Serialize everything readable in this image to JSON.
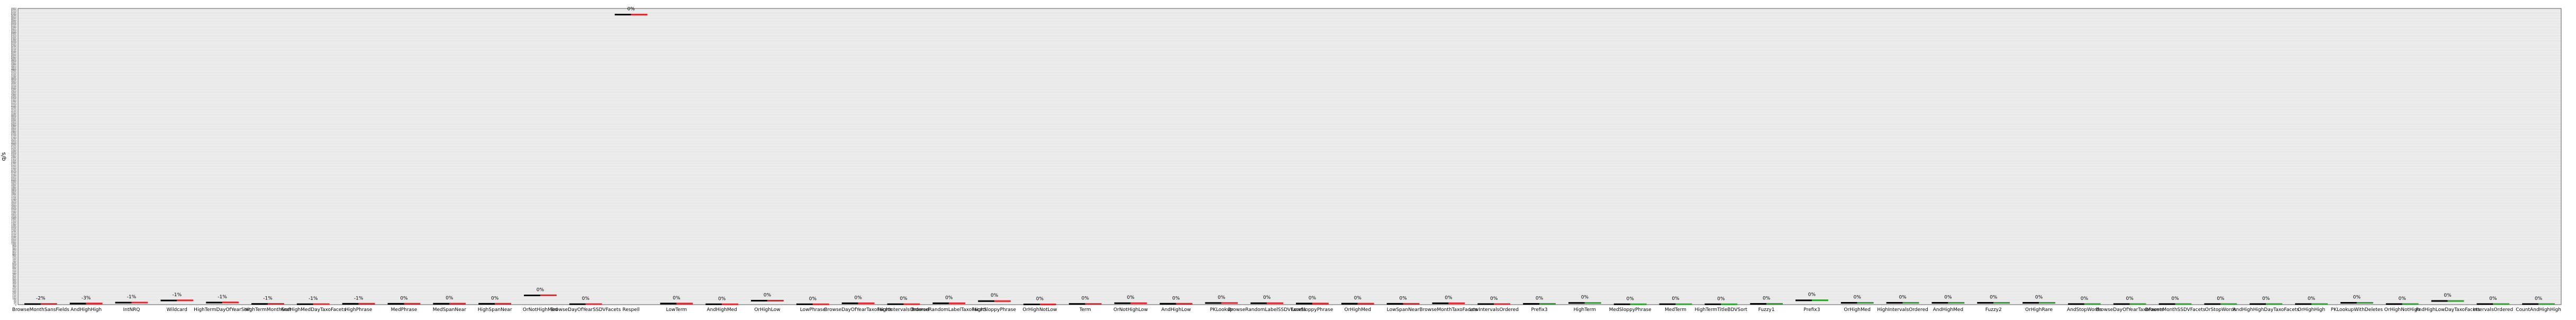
{
  "chart_data": {
    "type": "scatter",
    "ylabel": "q/s",
    "ylim": [
      0,
      4800
    ],
    "grid": true,
    "tick_step": 25,
    "series": [
      {
        "color": "#000000",
        "offset": -0.15
      },
      {
        "color": "#e6232c",
        "offset": 0.15
      },
      {
        "color": "#2ca02c",
        "offset": 0.15
      }
    ],
    "categories": [
      {
        "label": "BrowseMonthSansFields",
        "values": [
          10.0,
          12.0
        ],
        "annotation": "-2%",
        "color2": "red"
      },
      {
        "label": "AndHighHigh",
        "values": [
          18.0,
          19.0
        ],
        "annotation": "-3%",
        "color2": "red"
      },
      {
        "label": "IntNRQ",
        "values": [
          33.0,
          34.0
        ],
        "annotation": "-1%",
        "color2": "red"
      },
      {
        "label": "Wildcard",
        "values": [
          68.0,
          70.0
        ],
        "annotation": "-1%",
        "color2": "red"
      },
      {
        "label": "HighTermDayOfYearSort",
        "values": [
          34.0,
          36.0
        ],
        "annotation": "-1%",
        "color2": "red"
      },
      {
        "label": "HighTermMonthSort",
        "values": [
          12.0,
          13.0
        ],
        "annotation": "-1%",
        "color2": "red"
      },
      {
        "label": "AndHighMedDayTaxoFacets",
        "values": [
          8.0,
          9.0
        ],
        "annotation": "-1%",
        "color2": "red"
      },
      {
        "label": "HighPhrase",
        "values": [
          14.0,
          15.0
        ],
        "annotation": "-1%",
        "color2": "red"
      },
      {
        "label": "MedPhrase",
        "values": [
          14.0,
          15.0
        ],
        "annotation": "0%",
        "color2": "red"
      },
      {
        "label": "MedSpanNear",
        "values": [
          15.0,
          16.0
        ],
        "annotation": "0%",
        "color2": "red"
      },
      {
        "label": "HighSpanNear",
        "values": [
          14.0,
          15.0
        ],
        "annotation": "0%",
        "color2": "red"
      },
      {
        "label": "OrNotHighMed",
        "values": [
          150.0,
          152.0
        ],
        "annotation": "0%",
        "color2": "red"
      },
      {
        "label": "BrowseDayOfYearSSDVFacets",
        "values": [
          8.0,
          9.0
        ],
        "annotation": "0%",
        "color2": "red"
      },
      {
        "label": "Respell",
        "values": [
          4700.0,
          4700.0
        ],
        "annotation": "0%",
        "color2": "red"
      },
      {
        "label": "LowTerm",
        "values": [
          18.0,
          18.0
        ],
        "annotation": "0%",
        "color2": "red"
      },
      {
        "label": "AndHighMed",
        "values": [
          6.0,
          6.0
        ],
        "annotation": "0%",
        "color2": "red"
      },
      {
        "label": "OrHighLow",
        "values": [
          64.0,
          64.0
        ],
        "annotation": "0%",
        "color2": "red"
      },
      {
        "label": "LowPhrase",
        "values": [
          6.0,
          6.0
        ],
        "annotation": "0%",
        "color2": "red"
      },
      {
        "label": "BrowseDayOfYearTaxoFacets",
        "values": [
          23.0,
          23.0
        ],
        "annotation": "0%",
        "color2": "red"
      },
      {
        "label": "HighIntervalsOrdered",
        "values": [
          8.0,
          8.0
        ],
        "annotation": "0%",
        "color2": "red"
      },
      {
        "label": "BrowseRandomLabelTaxoFacets",
        "values": [
          22.0,
          22.0
        ],
        "annotation": "0%",
        "color2": "red"
      },
      {
        "label": "HighSloppyPhrase",
        "values": [
          58.0,
          58.0
        ],
        "annotation": "0%",
        "color2": "red"
      },
      {
        "label": "OrHighNotLow",
        "values": [
          4.0,
          4.0
        ],
        "annotation": "0%",
        "color2": "red"
      },
      {
        "label": "Term",
        "values": [
          12.0,
          12.0
        ],
        "annotation": "0%",
        "color2": "red"
      },
      {
        "label": "OrNotHighLow",
        "values": [
          24.0,
          24.0
        ],
        "annotation": "0%",
        "color2": "red"
      },
      {
        "label": "AndHighLow",
        "values": [
          15.0,
          15.0
        ],
        "annotation": "0%",
        "color2": "red"
      },
      {
        "label": "PKLookup",
        "values": [
          27.0,
          27.0
        ],
        "annotation": "0%",
        "color2": "red"
      },
      {
        "label": "BrowseRandomLabelSSDVFacets",
        "values": [
          24.0,
          24.0
        ],
        "annotation": "0%",
        "color2": "red"
      },
      {
        "label": "LowSloppyPhrase",
        "values": [
          18.0,
          18.0
        ],
        "annotation": "0%",
        "color2": "red"
      },
      {
        "label": "OrHighMed",
        "values": [
          16.0,
          16.0
        ],
        "annotation": "0%",
        "color2": "red"
      },
      {
        "label": "LowSpanNear",
        "values": [
          14.0,
          14.0
        ],
        "annotation": "0%",
        "color2": "red"
      },
      {
        "label": "BrowseMonthTaxoFacets",
        "values": [
          22.0,
          22.0
        ],
        "annotation": "0%",
        "color2": "red"
      },
      {
        "label": "LowIntervalsOrdered",
        "values": [
          10.0,
          10.0
        ],
        "annotation": "0%",
        "color2": "red"
      },
      {
        "label": "Prefix3",
        "values": [
          13.0,
          13.0
        ],
        "annotation": "0%",
        "color2": "green"
      },
      {
        "label": "HighTerm",
        "values": [
          28.0,
          28.0
        ],
        "annotation": "0%",
        "color2": "green"
      },
      {
        "label": "MedSloppyPhrase",
        "values": [
          6.0,
          6.0
        ],
        "annotation": "0%",
        "color2": "green"
      },
      {
        "label": "MedTerm",
        "values": [
          8.0,
          8.0
        ],
        "annotation": "0%",
        "color2": "green"
      },
      {
        "label": "HighTermTitleBDVSort",
        "values": [
          6.0,
          6.0
        ],
        "annotation": "0%",
        "color2": "green"
      },
      {
        "label": "Fuzzy1",
        "values": [
          13.0,
          13.0
        ],
        "annotation": "0%",
        "color2": "green"
      },
      {
        "label": "Prefix3",
        "values": [
          70.0,
          71.0
        ],
        "annotation": "0%",
        "color2": "green"
      },
      {
        "label": "OrHighMed",
        "values": [
          30.0,
          30.0
        ],
        "annotation": "0%",
        "color2": "green"
      },
      {
        "label": "HighIntervalsOrdered",
        "values": [
          30.0,
          30.0
        ],
        "annotation": "0%",
        "color2": "green"
      },
      {
        "label": "AndHighMed",
        "values": [
          30.0,
          30.0
        ],
        "annotation": "0%",
        "color2": "green"
      },
      {
        "label": "Fuzzy2",
        "values": [
          30.0,
          30.0
        ],
        "annotation": "0%",
        "color2": "green"
      },
      {
        "label": "OrHighRare",
        "values": [
          30.0,
          30.0
        ],
        "annotation": "0%",
        "color2": "green"
      },
      {
        "label": "AndStopWords",
        "values": [
          10.0,
          10.0
        ],
        "annotation": "0%",
        "color2": "green"
      },
      {
        "label": "BrowseDayOfYearTaxoFacets",
        "values": [
          10.0,
          10.0
        ],
        "annotation": "0%",
        "color2": "green"
      },
      {
        "label": "BrowseMonthSSDVFacets",
        "values": [
          10.0,
          10.0
        ],
        "annotation": "0%",
        "color2": "green"
      },
      {
        "label": "OrStopWords",
        "values": [
          10.0,
          10.0
        ],
        "annotation": "0%",
        "color2": "green"
      },
      {
        "label": "AndHighHighDayTaxoFacets",
        "values": [
          10.0,
          10.0
        ],
        "annotation": "0%",
        "color2": "green"
      },
      {
        "label": "OrHighHigh",
        "values": [
          10.0,
          10.0
        ],
        "annotation": "0%",
        "color2": "green"
      },
      {
        "label": "PKLookupWithDeletes",
        "values": [
          30.0,
          30.0
        ],
        "annotation": "0%",
        "color2": "green"
      },
      {
        "label": "OrHighNotHigh",
        "values": [
          10.0,
          10.0
        ],
        "annotation": "0%",
        "color2": "green"
      },
      {
        "label": "AndHighLowDayTaxoFacets",
        "values": [
          60.0,
          60.0
        ],
        "annotation": "0%",
        "color2": "green"
      },
      {
        "label": "IntervalsOrdered",
        "values": [
          10.0,
          10.0
        ],
        "annotation": "0%",
        "color2": "green"
      },
      {
        "label": "CountAndHighHigh",
        "values": [
          10.0,
          10.0
        ],
        "annotation": "0%",
        "color2": "green"
      }
    ]
  }
}
